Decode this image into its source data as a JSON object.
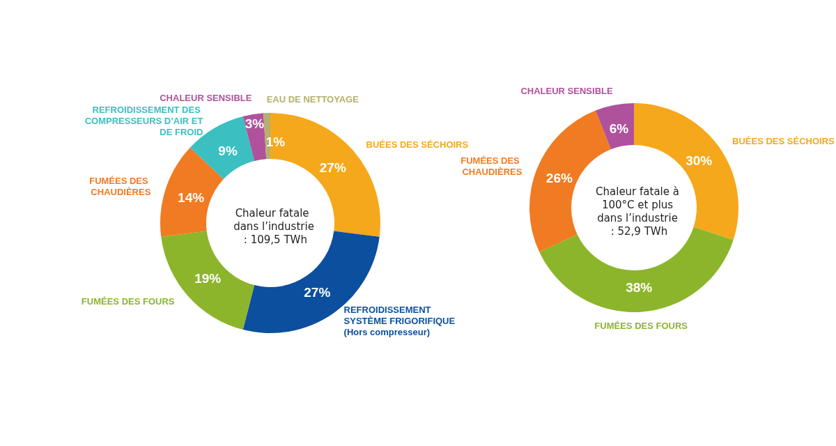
{
  "chart_data": [
    {
      "type": "donut",
      "title": "Chaleur fatale dans l’industrie : 109,5 TWh",
      "categories": [
        "BUÉES DES SÉCHOIRS",
        "REFROIDISSEMENT SYSTÈME FRIGORIFIQUE (Hors compresseur)",
        "FUMÉES DES FOURS",
        "FUMÉES DES CHAUDIÈRES",
        "REFROIDISSEMENT DES COMPRESSEURS D’AIR ET DE FROID",
        "CHALEUR SENSIBLE",
        "EAU DE NETTOYAGE"
      ],
      "values": [
        27,
        27,
        19,
        14,
        9,
        3,
        1
      ],
      "value_labels": [
        "27%",
        "27%",
        "19%",
        "14%",
        "9%",
        "3%",
        "1%"
      ],
      "colors": [
        "#f5a81c",
        "#0b4f9e",
        "#8cb52c",
        "#f07b22",
        "#3bbfc1",
        "#b0519c",
        "#b5b06b"
      ],
      "legend": false
    },
    {
      "type": "donut",
      "title": "Chaleur fatale à 100°C et plus dans l’industrie : 52,9 TWh",
      "categories": [
        "BUÉES DES SÉCHOIRS",
        "FUMÉES DES FOURS",
        "FUMÉES DES CHAUDIÈRES",
        "CHALEUR SENSIBLE"
      ],
      "values": [
        30,
        38,
        26,
        6
      ],
      "value_labels": [
        "30%",
        "38%",
        "26%",
        "6%"
      ],
      "colors": [
        "#f5a81c",
        "#8cb52c",
        "#f07b22",
        "#b0519c"
      ],
      "legend": false
    }
  ]
}
